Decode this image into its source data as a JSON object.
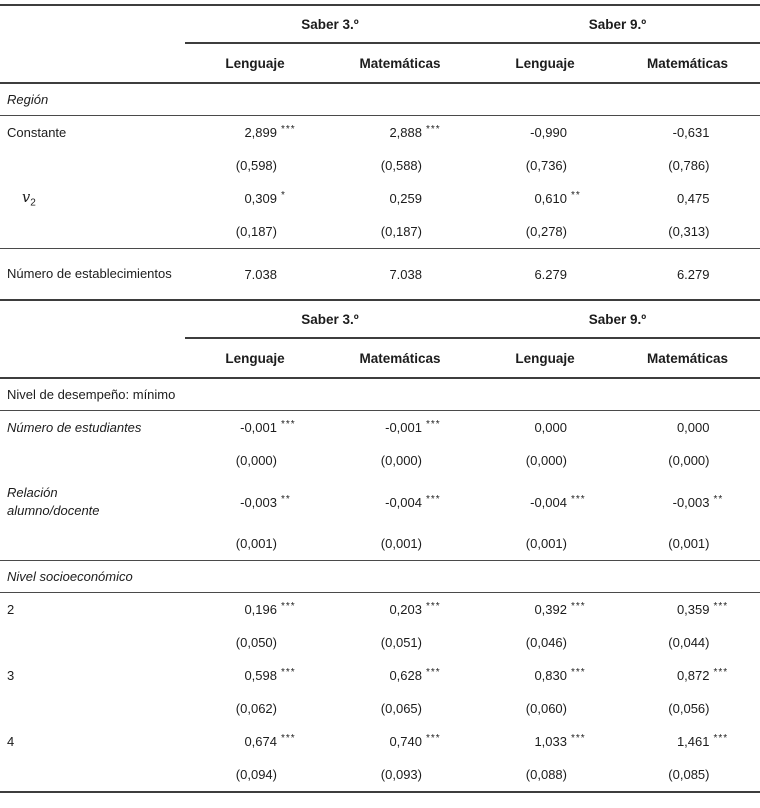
{
  "colors": {
    "rule": "#3d3d3d",
    "text": "#1c1c1c"
  },
  "header": {
    "group1": "Saber 3.º",
    "group2": "Saber 9.º",
    "col1": "Lenguaje",
    "col2": "Matemáticas",
    "col3": "Lenguaje",
    "col4": "Matemáticas"
  },
  "table1": {
    "section": "Región",
    "rows": [
      {
        "label": "Constante",
        "cells": [
          {
            "v": "2,899",
            "s": "***"
          },
          {
            "v": "2,888",
            "s": "***"
          },
          {
            "v": "-0,990",
            "s": ""
          },
          {
            "v": "-0,631",
            "s": ""
          }
        ]
      },
      {
        "label": "",
        "cells": [
          {
            "v": "(0,598)",
            "s": ""
          },
          {
            "v": "(0,588)",
            "s": ""
          },
          {
            "v": "(0,736)",
            "s": ""
          },
          {
            "v": "(0,786)",
            "s": ""
          }
        ]
      },
      {
        "label": "v",
        "sub": "2",
        "cells": [
          {
            "v": "0,309",
            "s": "*"
          },
          {
            "v": "0,259",
            "s": ""
          },
          {
            "v": "0,610",
            "s": "**"
          },
          {
            "v": "0,475",
            "s": ""
          }
        ]
      },
      {
        "label": "",
        "cells": [
          {
            "v": "(0,187)",
            "s": ""
          },
          {
            "v": "(0,187)",
            "s": ""
          },
          {
            "v": "(0,278)",
            "s": ""
          },
          {
            "v": "(0,313)",
            "s": ""
          }
        ]
      },
      {
        "label": "Número de establecimientos",
        "cells": [
          {
            "v": "7.038",
            "s": ""
          },
          {
            "v": "7.038",
            "s": ""
          },
          {
            "v": "6.279",
            "s": ""
          },
          {
            "v": "6.279",
            "s": ""
          }
        ]
      }
    ]
  },
  "table2": {
    "section1": "Nivel de desempeño: mínimo",
    "section2": "Nivel socioeconómico",
    "rows1": [
      {
        "label": "Número de estudiantes",
        "cells": [
          {
            "v": "-0,001",
            "s": "***"
          },
          {
            "v": "-0,001",
            "s": "***"
          },
          {
            "v": "0,000",
            "s": ""
          },
          {
            "v": "0,000",
            "s": ""
          }
        ]
      },
      {
        "label": "",
        "cells": [
          {
            "v": "(0,000)",
            "s": ""
          },
          {
            "v": "(0,000)",
            "s": ""
          },
          {
            "v": "(0,000)",
            "s": ""
          },
          {
            "v": "(0,000)",
            "s": ""
          }
        ]
      },
      {
        "label": "Relación alumno/docente",
        "cells": [
          {
            "v": "-0,003",
            "s": "**"
          },
          {
            "v": "-0,004",
            "s": "***"
          },
          {
            "v": "-0,004",
            "s": "***"
          },
          {
            "v": "-0,003",
            "s": "**"
          }
        ]
      },
      {
        "label": "",
        "cells": [
          {
            "v": "(0,001)",
            "s": ""
          },
          {
            "v": "(0,001)",
            "s": ""
          },
          {
            "v": "(0,001)",
            "s": ""
          },
          {
            "v": "(0,001)",
            "s": ""
          }
        ]
      }
    ],
    "rows2": [
      {
        "label": "2",
        "cells": [
          {
            "v": "0,196",
            "s": "***"
          },
          {
            "v": "0,203",
            "s": "***"
          },
          {
            "v": "0,392",
            "s": "***"
          },
          {
            "v": "0,359",
            "s": "***"
          }
        ]
      },
      {
        "label": "",
        "cells": [
          {
            "v": "(0,050)",
            "s": ""
          },
          {
            "v": "(0,051)",
            "s": ""
          },
          {
            "v": "(0,046)",
            "s": ""
          },
          {
            "v": "(0,044)",
            "s": ""
          }
        ]
      },
      {
        "label": "3",
        "cells": [
          {
            "v": "0,598",
            "s": "***"
          },
          {
            "v": "0,628",
            "s": "***"
          },
          {
            "v": "0,830",
            "s": "***"
          },
          {
            "v": "0,872",
            "s": "***"
          }
        ]
      },
      {
        "label": "",
        "cells": [
          {
            "v": "(0,062)",
            "s": ""
          },
          {
            "v": "(0,065)",
            "s": ""
          },
          {
            "v": "(0,060)",
            "s": ""
          },
          {
            "v": "(0,056)",
            "s": ""
          }
        ]
      },
      {
        "label": "4",
        "cells": [
          {
            "v": "0,674",
            "s": "***"
          },
          {
            "v": "0,740",
            "s": "***"
          },
          {
            "v": "1,033",
            "s": "***"
          },
          {
            "v": "1,461",
            "s": "***"
          }
        ]
      },
      {
        "label": "",
        "cells": [
          {
            "v": "(0,094)",
            "s": ""
          },
          {
            "v": "(0,093)",
            "s": ""
          },
          {
            "v": "(0,088)",
            "s": ""
          },
          {
            "v": "(0,085)",
            "s": ""
          }
        ]
      }
    ]
  }
}
